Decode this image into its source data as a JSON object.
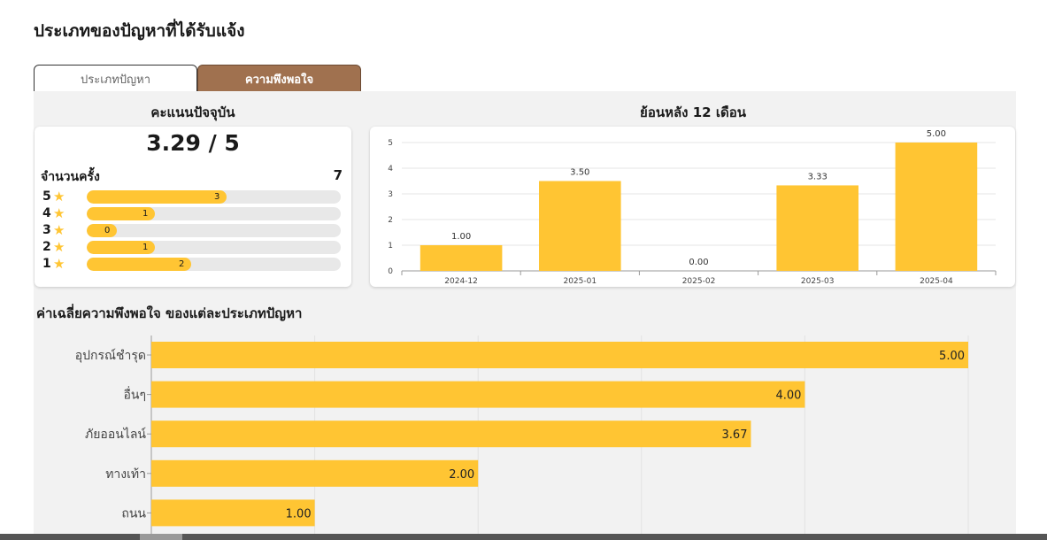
{
  "page": {
    "title": "ประเภทของปัญหาที่ได้รับแจ้ง"
  },
  "tabs": [
    {
      "label": "ประเภทปัญหา",
      "active": false
    },
    {
      "label": "ความพึงพอใจ",
      "active": true
    }
  ],
  "current": {
    "title": "คะแนนปัจจุบัน",
    "score": "3.29 / 5",
    "count_label": "จำนวนครั้ง",
    "count": "7",
    "star_icon": "star-icon",
    "ratings": [
      {
        "stars": "5",
        "count": "3",
        "fraction": 0.55
      },
      {
        "stars": "4",
        "count": "1",
        "fraction": 0.27
      },
      {
        "stars": "3",
        "count": "0",
        "fraction": 0.12
      },
      {
        "stars": "2",
        "count": "1",
        "fraction": 0.27
      },
      {
        "stars": "1",
        "count": "2",
        "fraction": 0.41
      }
    ]
  },
  "history": {
    "title": "ย้อนหลัง 12 เดือน"
  },
  "average": {
    "title": "ค่าเฉลี่ยความพึงพอใจ ของแต่ละประเภทปัญหา"
  },
  "colors": {
    "accent": "#a0714f",
    "bar": "#ffc533",
    "track": "#e8e8e8",
    "panel": "#f2f2f2"
  },
  "chart_data": [
    {
      "type": "bar",
      "categories": [
        "2024-12",
        "2025-01",
        "2025-02",
        "2025-03",
        "2025-04"
      ],
      "values": [
        1.0,
        3.5,
        0.0,
        3.33,
        5.0
      ],
      "value_labels": [
        "1.00",
        "3.50",
        "0.00",
        "3.33",
        "5.00"
      ],
      "y_ticks": [
        "0",
        "1",
        "2",
        "3",
        "4",
        "5"
      ],
      "ylim": [
        0,
        5
      ],
      "grid": true
    },
    {
      "type": "bar",
      "orientation": "horizontal",
      "categories": [
        "อุปกรณ์ชำรุด",
        "อื่นๆ",
        "ภัยออนไลน์",
        "ทางเท้า",
        "ถนน"
      ],
      "values": [
        5.0,
        4.0,
        3.67,
        2.0,
        1.0
      ],
      "value_labels": [
        "5.00",
        "4.00",
        "3.67",
        "2.00",
        "1.00"
      ],
      "xlim": [
        0,
        5
      ],
      "grid": true
    }
  ]
}
